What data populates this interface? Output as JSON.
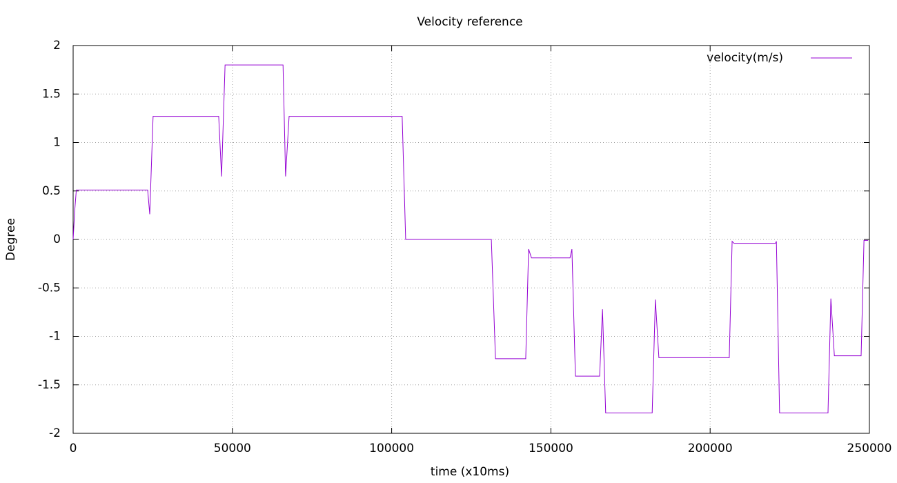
{
  "chart_data": {
    "type": "line",
    "title": "Velocity reference",
    "x_label": "time (x10ms)",
    "y_label": "Degree",
    "x": [
      0,
      500,
      1000,
      23400,
      24050,
      25100,
      45700,
      46600,
      47700,
      65900,
      66700,
      67800,
      103300,
      104400,
      131300,
      132600,
      142100,
      143000,
      143900,
      156000,
      156600,
      157700,
      165300,
      166200,
      167200,
      181800,
      182800,
      183900,
      206000,
      206900,
      207500,
      220500,
      220800,
      221800,
      237000,
      237900,
      239000,
      247400,
      248300,
      249600
    ],
    "series": [
      {
        "name": "velocity(m/s)",
        "color": "#9400d3",
        "values": [
          0,
          0.3,
          0.51,
          0.51,
          0.26,
          1.27,
          1.27,
          0.65,
          1.8,
          1.8,
          0.65,
          1.27,
          1.27,
          0,
          0,
          -1.23,
          -1.23,
          -0.1,
          -0.19,
          -0.19,
          -0.1,
          -1.41,
          -1.41,
          -0.72,
          -1.79,
          -1.79,
          -0.62,
          -1.22,
          -1.22,
          -0.02,
          -0.04,
          -0.04,
          -0.02,
          -1.79,
          -1.79,
          -0.61,
          -1.2,
          -1.2,
          -0.01,
          -0.01
        ]
      }
    ],
    "xlim": [
      0,
      250000
    ],
    "xticks": [
      0,
      50000,
      100000,
      150000,
      200000,
      250000
    ],
    "ylim": [
      -2,
      2
    ],
    "yticks": [
      -2,
      -1.5,
      -1,
      -0.5,
      0,
      0.5,
      1,
      1.5,
      2
    ],
    "grid": true,
    "legend": "top-right"
  }
}
